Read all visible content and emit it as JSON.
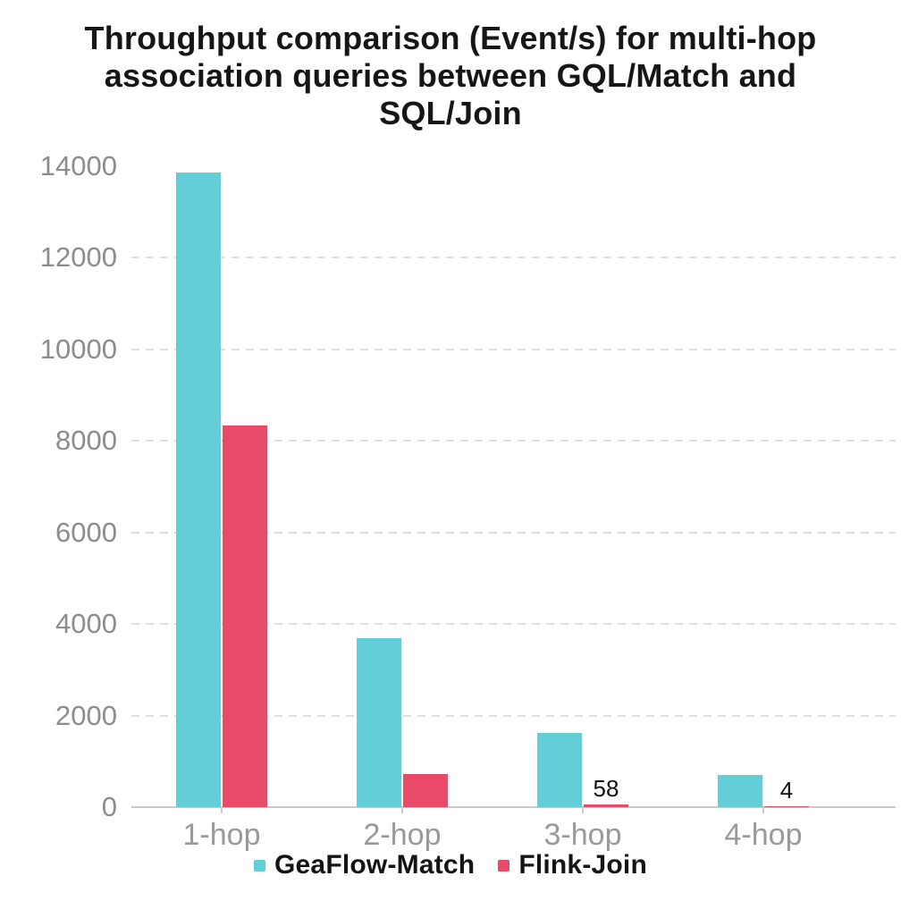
{
  "chart_data": {
    "type": "bar",
    "title": "Throughput comparison (Event/s) for multi-hop association queries between GQL/Match and SQL/Join",
    "title_lines": [
      "Throughput comparison (Event/s) for multi-hop",
      "association queries between GQL/Match and",
      "SQL/Join"
    ],
    "categories": [
      "1-hop",
      "2-hop",
      "3-hop",
      "4-hop"
    ],
    "series": [
      {
        "name": "GeaFlow-Match",
        "color": "#64CED8",
        "values": [
          13860,
          3690,
          1620,
          700
        ],
        "value_labels": [
          null,
          null,
          null,
          null
        ]
      },
      {
        "name": "Flink-Join",
        "color": "#E94A67",
        "values": [
          8330,
          720,
          58,
          4
        ],
        "value_labels": [
          null,
          null,
          "58",
          "4"
        ]
      }
    ],
    "xlabel": "",
    "ylabel": "",
    "ylim": [
      0,
      14000
    ],
    "yticks": [
      0,
      2000,
      4000,
      6000,
      8000,
      10000,
      12000,
      14000
    ],
    "grid": "horizontal-dashed",
    "legend_position": "bottom"
  },
  "style_colors": {
    "grid": "#dedede",
    "axis": "#c9c9c9",
    "y_tick_text": "#8c8c8c",
    "x_tick_text": "#999999",
    "title_text": "#161616",
    "value_label_text": "#111111"
  }
}
